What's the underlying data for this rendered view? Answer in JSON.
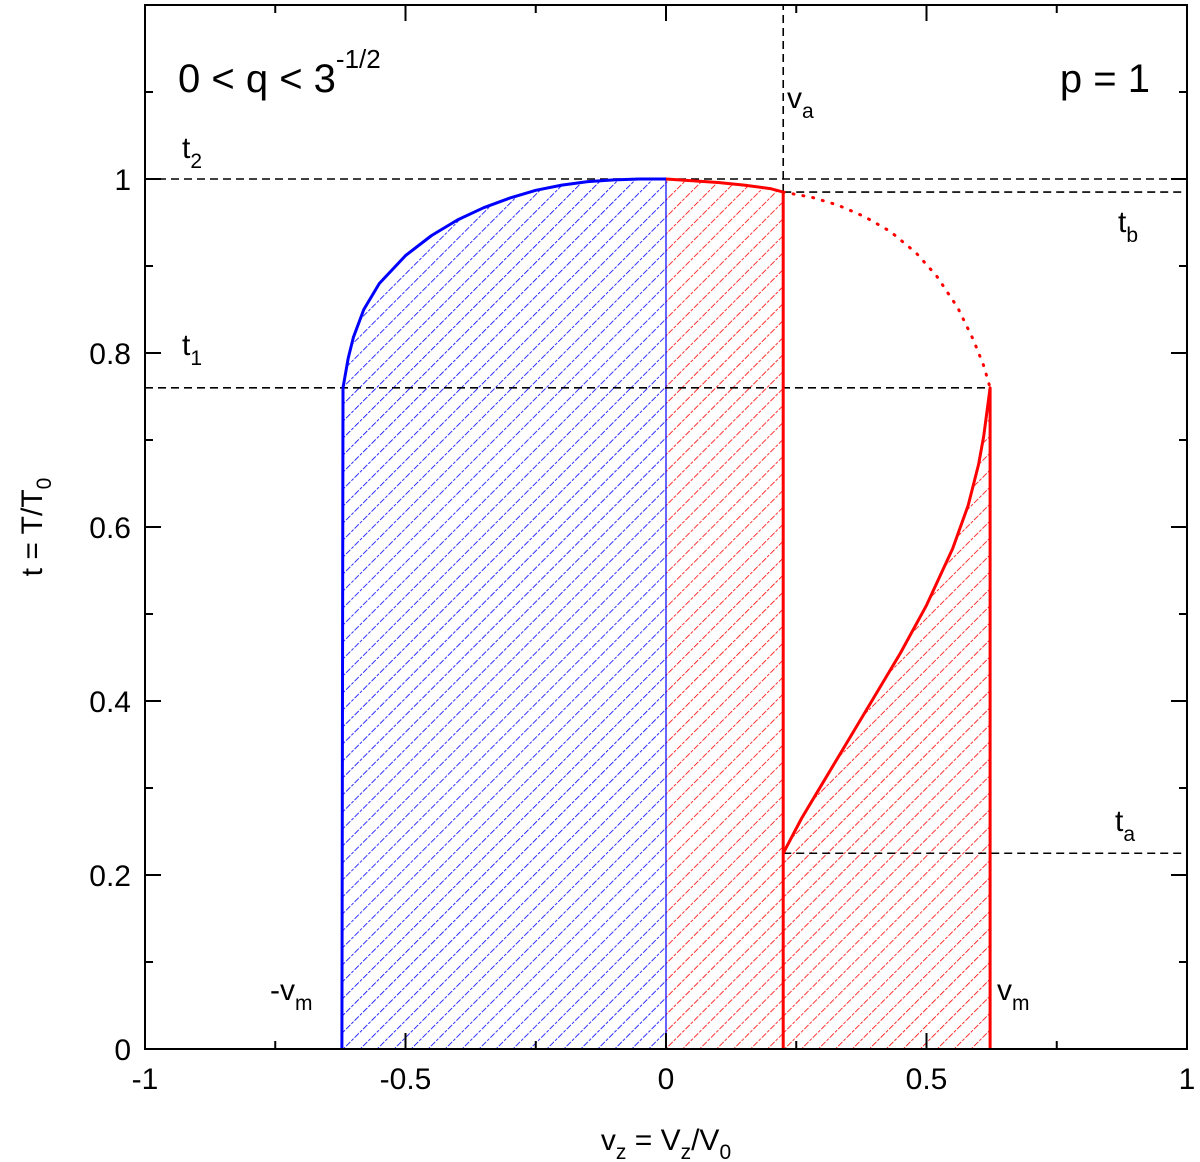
{
  "chart_data": {
    "type": "line",
    "xlabel": {
      "base": "v",
      "base_sub": "z",
      "mid": " = V",
      "mid_sub": "z",
      "tail": "/V",
      "tail_sub": "0"
    },
    "ylabel": {
      "base": "t = T/T",
      "base_sub": "0"
    },
    "xlim": [
      -1,
      1
    ],
    "ylim": [
      0,
      1.2
    ],
    "x_ticks": [
      -1,
      -0.5,
      0,
      0.5,
      1
    ],
    "x_tick_labels": [
      "-1",
      "-0.5",
      "0",
      "0.5",
      "1"
    ],
    "y_ticks": [
      0,
      0.2,
      0.4,
      0.6,
      0.8,
      1
    ],
    "y_tick_labels": [
      "0",
      "0.2",
      "0.4",
      "0.6",
      "0.8",
      "1"
    ],
    "grid": false,
    "params": {
      "v_m": 0.622,
      "v_a": 0.225,
      "t_1": 0.76,
      "t_2": 1.0,
      "t_a": 0.225,
      "t_b": 0.985
    },
    "colors": {
      "blue": "#0000ff",
      "red": "#ff0000",
      "dashed": "#000000"
    },
    "series": [
      {
        "style": "solid",
        "color": "blue",
        "x": [
          -0.622,
          -0.62,
          -0.61,
          -0.6,
          -0.58,
          -0.55,
          -0.5,
          -0.45,
          -0.4,
          -0.35,
          -0.3,
          -0.25,
          -0.2,
          -0.15,
          -0.1,
          -0.05,
          0
        ],
        "y": [
          0,
          0.76,
          0.794,
          0.818,
          0.85,
          0.88,
          0.912,
          0.935,
          0.953,
          0.967,
          0.978,
          0.987,
          0.993,
          0.997,
          0.999,
          1.0,
          1.0
        ]
      },
      {
        "style": "solid",
        "color": "red",
        "x": [
          0,
          0.05,
          0.1,
          0.15,
          0.2,
          0.225,
          0.225
        ],
        "y": [
          1.0,
          0.998,
          0.996,
          0.993,
          0.989,
          0.985,
          0
        ]
      },
      {
        "style": "dotted",
        "color": "red",
        "x": [
          0.225,
          0.28,
          0.33,
          0.38,
          0.43,
          0.48,
          0.52,
          0.56,
          0.59,
          0.61,
          0.622
        ],
        "y": [
          0.985,
          0.979,
          0.97,
          0.957,
          0.94,
          0.915,
          0.888,
          0.852,
          0.815,
          0.785,
          0.76
        ]
      },
      {
        "style": "solid",
        "color": "red",
        "x": [
          0.225,
          0.26,
          0.3,
          0.35,
          0.4,
          0.45,
          0.5,
          0.55,
          0.58,
          0.6,
          0.61,
          0.622,
          0.622
        ],
        "y": [
          0.225,
          0.265,
          0.305,
          0.355,
          0.405,
          0.455,
          0.51,
          0.575,
          0.625,
          0.672,
          0.705,
          0.76,
          0
        ]
      }
    ],
    "reference_lines": [
      {
        "orientation": "h",
        "value": 1.0,
        "from": -1,
        "to": 1,
        "style": "dashed"
      },
      {
        "orientation": "h",
        "value": 0.985,
        "from": 0.225,
        "to": 1,
        "style": "dashed"
      },
      {
        "orientation": "h",
        "value": 0.76,
        "from": -1,
        "to": 0.622,
        "style": "dashed"
      },
      {
        "orientation": "h",
        "value": 0.225,
        "from": 0.225,
        "to": 1,
        "style": "dashed"
      },
      {
        "orientation": "v",
        "value": 0.225,
        "from": 0.985,
        "to": 1.2,
        "style": "dashed"
      }
    ],
    "annotations": {
      "region": {
        "base": "0 < q < 3",
        "sup": "-1/2"
      },
      "param": "p = 1",
      "t2": {
        "base": "t",
        "sub": "2"
      },
      "t1": {
        "base": "t",
        "sub": "1"
      },
      "tb": {
        "base": "t",
        "sub": "b"
      },
      "ta": {
        "base": "t",
        "sub": "a"
      },
      "va": {
        "base": "v",
        "sub": "a"
      },
      "neg_vm": {
        "base": "-v",
        "sub": "m"
      },
      "vm": {
        "base": "v",
        "sub": "m"
      }
    }
  }
}
